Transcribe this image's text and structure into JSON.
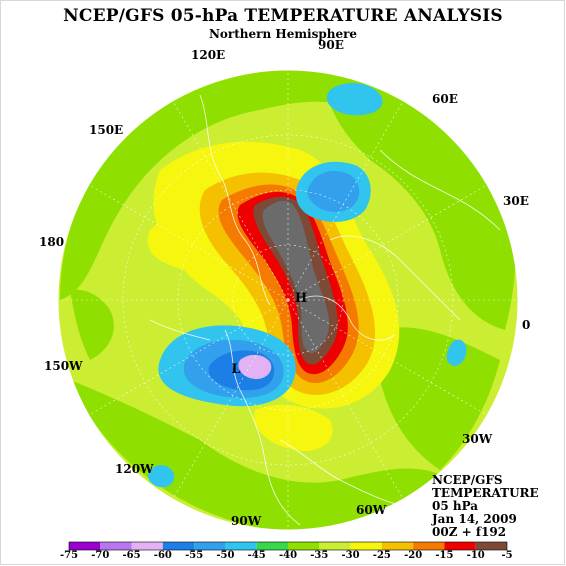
{
  "title": "NCEP/GFS 05-hPa TEMPERATURE ANALYSIS",
  "subtitle": "Northern Hemisphere",
  "longitude_labels": [
    {
      "id": "lon-90e",
      "text": "90E"
    },
    {
      "id": "lon-120e",
      "text": "120E"
    },
    {
      "id": "lon-60e",
      "text": "60E"
    },
    {
      "id": "lon-150e",
      "text": "150E"
    },
    {
      "id": "lon-30e",
      "text": "30E"
    },
    {
      "id": "lon-180",
      "text": "180"
    },
    {
      "id": "lon-0",
      "text": "0"
    },
    {
      "id": "lon-150w",
      "text": "150W"
    },
    {
      "id": "lon-30w",
      "text": "30W"
    },
    {
      "id": "lon-120w",
      "text": "120W"
    },
    {
      "id": "lon-90w",
      "text": "90W"
    },
    {
      "id": "lon-60w",
      "text": "60W"
    }
  ],
  "pressure_markers": {
    "high": "H",
    "low": "L"
  },
  "info": {
    "line1": "NCEP/GFS",
    "line2": "TEMPERATURE",
    "line3": "05 hPa",
    "line4": "Jan 14, 2009",
    "line5": "00Z + f192"
  },
  "colorbar": {
    "labels": [
      "-75",
      "-70",
      "-65",
      "-60",
      "-55",
      "-50",
      "-45",
      "-40",
      "-35",
      "-30",
      "-25",
      "-20",
      "-15",
      "-10",
      "-5"
    ],
    "colors": [
      "#9a00d0",
      "#b877ee",
      "#e3b2f5",
      "#1c7fe6",
      "#33a0ee",
      "#30c4ee",
      "#37d84a",
      "#8fe000",
      "#cbee33",
      "#f6f60e",
      "#f4c000",
      "#f47a00",
      "#ee0000",
      "#7c4a36",
      "#6b6b6b"
    ]
  },
  "fields": {
    "background": "#cbee33",
    "ocean_line": "#ffffff"
  }
}
